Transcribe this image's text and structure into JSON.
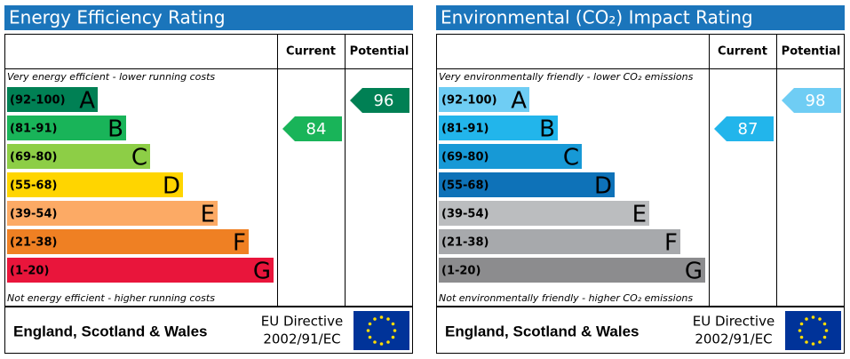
{
  "panels": [
    {
      "title": "Energy Efficiency Rating",
      "current_header": "Current",
      "potential_header": "Potential",
      "top_note": "Very energy efficient - lower running costs",
      "bottom_note": "Not energy efficient - higher running costs",
      "bands": [
        {
          "range": "(92-100)",
          "letter": "A",
          "color": "#008054"
        },
        {
          "range": "(81-91)",
          "letter": "B",
          "color": "#19b459"
        },
        {
          "range": "(69-80)",
          "letter": "C",
          "color": "#8dce46"
        },
        {
          "range": "(55-68)",
          "letter": "D",
          "color": "#ffd500"
        },
        {
          "range": "(39-54)",
          "letter": "E",
          "color": "#fcaa65"
        },
        {
          "range": "(21-38)",
          "letter": "F",
          "color": "#ef8023"
        },
        {
          "range": "(1-20)",
          "letter": "G",
          "color": "#e9153b"
        }
      ],
      "current": 84,
      "potential": 96,
      "region": "England, Scotland & Wales",
      "directive": "EU Directive",
      "directive_code": "2002/91/EC"
    },
    {
      "title": "Environmental (CO₂) Impact Rating",
      "current_header": "Current",
      "potential_header": "Potential",
      "top_note": "Very environmentally friendly - lower CO₂ emissions",
      "bottom_note": "Not environmentally friendly - higher CO₂ emissions",
      "bands": [
        {
          "range": "(92-100)",
          "letter": "A",
          "color": "#6fcdf4"
        },
        {
          "range": "(81-91)",
          "letter": "B",
          "color": "#22b5eb"
        },
        {
          "range": "(69-80)",
          "letter": "C",
          "color": "#1799d6"
        },
        {
          "range": "(55-68)",
          "letter": "D",
          "color": "#0e72b8"
        },
        {
          "range": "(39-54)",
          "letter": "E",
          "color": "#bbbdbf"
        },
        {
          "range": "(21-38)",
          "letter": "F",
          "color": "#a7a9ac"
        },
        {
          "range": "(1-20)",
          "letter": "G",
          "color": "#8c8c8e"
        }
      ],
      "current": 87,
      "potential": 98,
      "region": "England, Scotland & Wales",
      "directive": "EU Directive",
      "directive_code": "2002/91/EC"
    }
  ]
}
